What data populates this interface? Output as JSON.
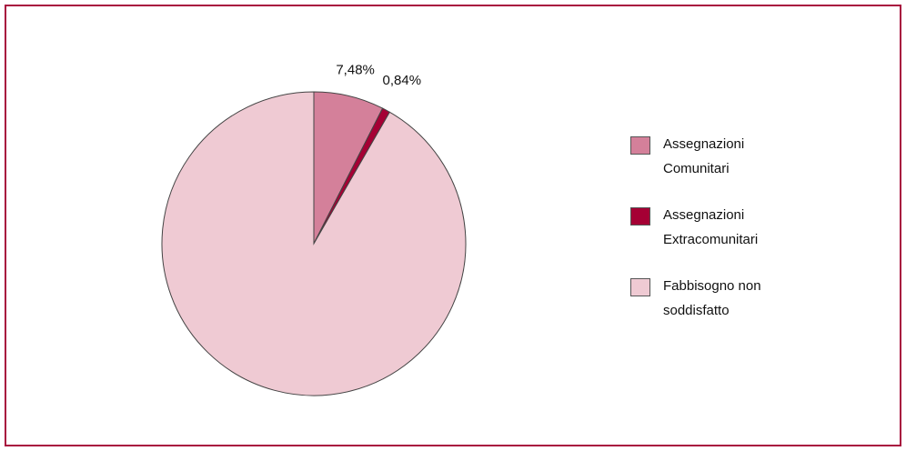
{
  "chart_data": {
    "type": "pie",
    "categories": [
      "Assegnazioni Comunitari",
      "Assegnazioni Extracomunitari",
      "Fabbisogno non soddisfatto"
    ],
    "values": [
      7.48,
      0.84,
      91.68
    ],
    "value_labels": [
      "7,48%",
      "0,84%",
      null
    ],
    "colors": [
      "#d4809a",
      "#a50034",
      "#efcad3"
    ],
    "legend": "right"
  }
}
